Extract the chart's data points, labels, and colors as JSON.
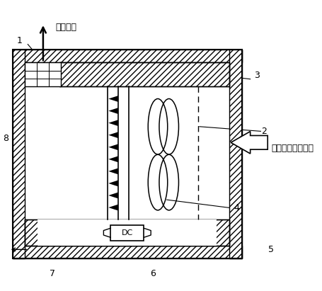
{
  "figure_width": 4.56,
  "figure_height": 4.11,
  "bg_color": "#ffffff",
  "text_clean_air": "干净空气",
  "text_dirty_air": "含有污染物的空气",
  "text_dc": "DC",
  "labels": [
    "1",
    "2",
    "3",
    "4",
    "5",
    "6",
    "7",
    "8"
  ],
  "font_size_label": 9,
  "font_size_text": 9
}
